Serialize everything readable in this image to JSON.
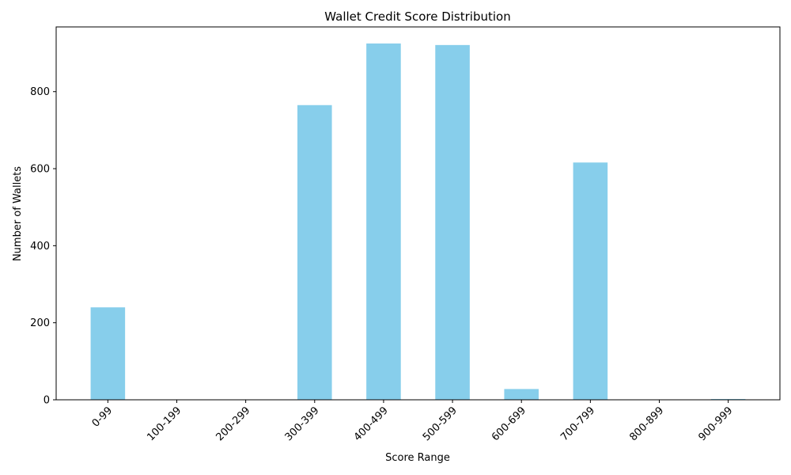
{
  "chart_data": {
    "type": "bar",
    "title": "Wallet Credit Score Distribution",
    "xlabel": "Score Range",
    "ylabel": "Number of Wallets",
    "categories": [
      "0-99",
      "100-199",
      "200-299",
      "300-399",
      "400-499",
      "500-599",
      "600-699",
      "700-799",
      "800-899",
      "900-999"
    ],
    "values": [
      240,
      0,
      0,
      765,
      925,
      921,
      28,
      616,
      0,
      2
    ],
    "ylim": [
      0,
      968
    ],
    "yticks": [
      0,
      200,
      400,
      600,
      800
    ],
    "grid": false,
    "bar_color": "#87CEEB",
    "xtick_rotation": 45
  }
}
